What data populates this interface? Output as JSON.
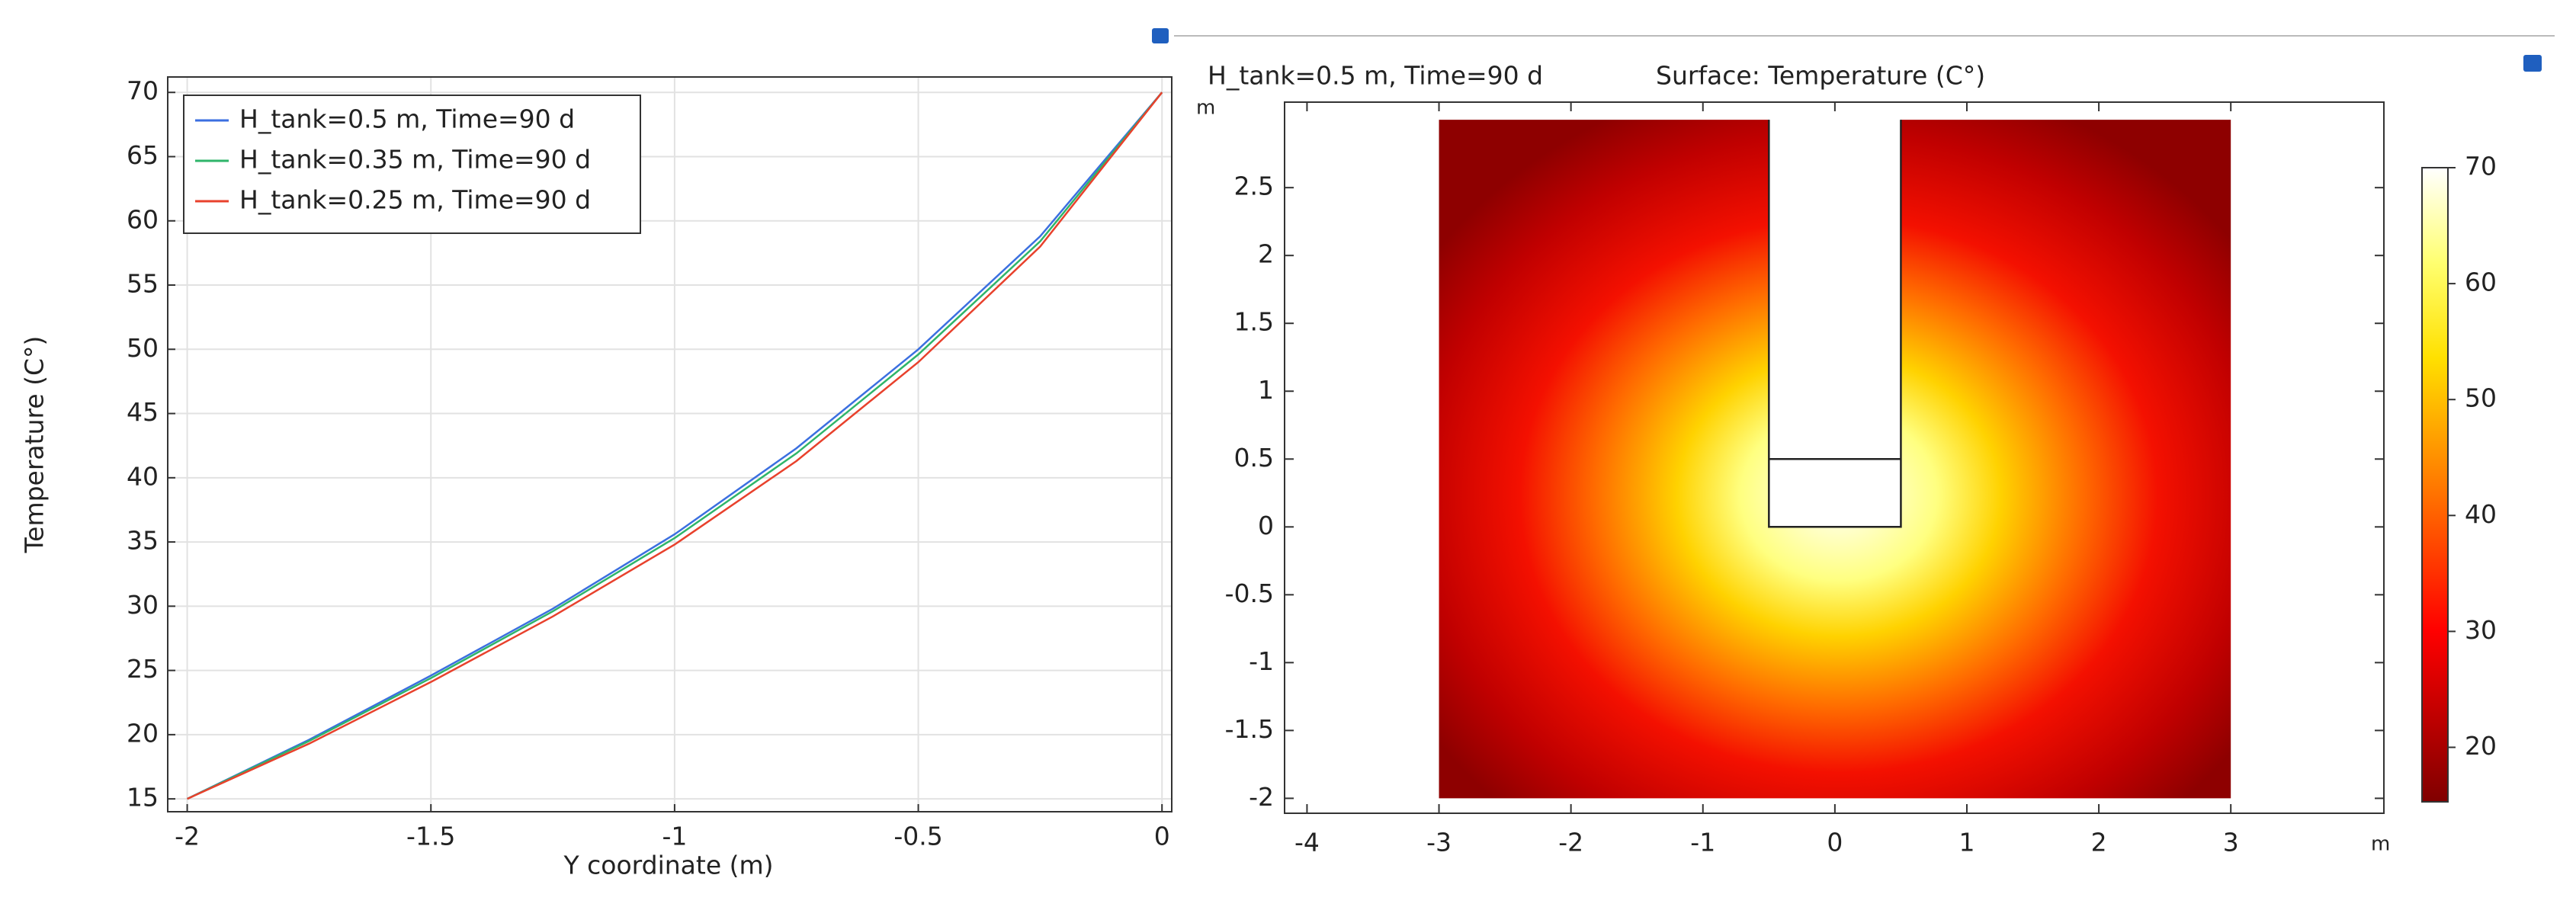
{
  "chart_data": [
    {
      "type": "line",
      "x_label": "Y coordinate (m)",
      "y_label": "Temperature (C°)",
      "x": [
        -2,
        -1.75,
        -1.5,
        -1.25,
        -1,
        -0.75,
        -0.5,
        -0.25,
        0
      ],
      "series": [
        {
          "name": "H_tank=0.5 m, Time=90 d",
          "color": "#3b6fe0",
          "values": [
            15,
            19.6,
            24.6,
            29.8,
            35.6,
            42.3,
            50,
            58.8,
            70
          ]
        },
        {
          "name": "H_tank=0.35 m, Time=90 d",
          "color": "#2fb56a",
          "values": [
            15,
            19.5,
            24.4,
            29.6,
            35.3,
            41.9,
            49.6,
            58.4,
            70
          ]
        },
        {
          "name": "H_tank=0.25 m, Time=90 d",
          "color": "#e8412c",
          "values": [
            15,
            19.3,
            24.1,
            29.2,
            34.8,
            41.3,
            49,
            58,
            70
          ]
        }
      ],
      "xlim": [
        -2.04,
        0.02
      ],
      "xticks": [
        -2,
        -1.5,
        -1,
        -0.5,
        0
      ],
      "ylim": [
        14,
        71.2
      ],
      "yticks": [
        15,
        20,
        25,
        30,
        35,
        40,
        45,
        50,
        55,
        60,
        65,
        70
      ],
      "grid": true,
      "legend": "top-left"
    },
    {
      "type": "surface",
      "title": "H_tank=0.5 m, Time=90 d",
      "subtitle": "Surface: Temperature (C°)",
      "x_unit": "m",
      "y_unit": "m",
      "xlim": [
        -4.17,
        4.16
      ],
      "xticks": [
        -4,
        -3,
        -2,
        -1,
        0,
        1,
        2,
        3
      ],
      "ylim": [
        -2.11,
        3.13
      ],
      "yticks": [
        -2,
        -1.5,
        -1,
        -0.5,
        0,
        0.5,
        1,
        1.5,
        2,
        2.5
      ],
      "clim": [
        15.3,
        70
      ],
      "cticks": [
        20,
        30,
        40,
        50,
        60,
        70
      ]
    }
  ]
}
